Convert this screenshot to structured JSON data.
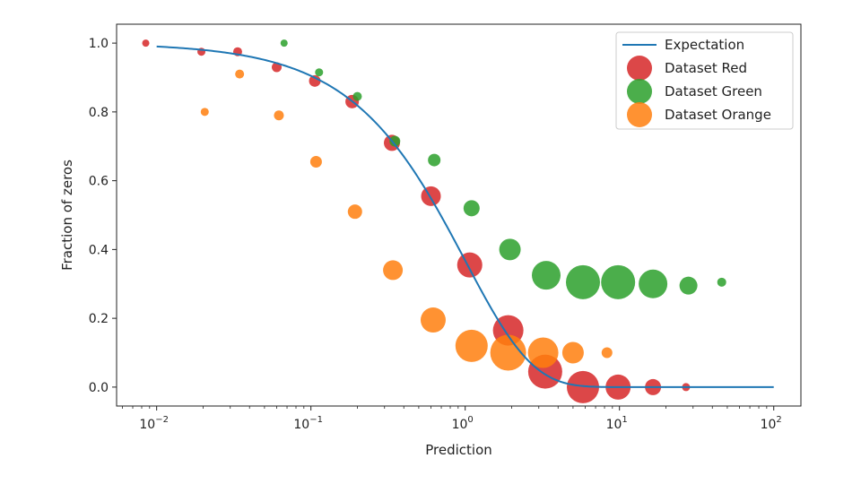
{
  "chart_data": {
    "type": "scatter",
    "title": "",
    "xlabel": "Prediction",
    "ylabel": "Fraction of zeros",
    "xscale": "log",
    "xlim": [
      0.0055,
      150
    ],
    "ylim": [
      -0.055,
      1.055
    ],
    "xticks": [
      {
        "value": 0.01,
        "base": "10",
        "exp": "−2"
      },
      {
        "value": 0.1,
        "base": "10",
        "exp": "−1"
      },
      {
        "value": 1,
        "base": "10",
        "exp": "0"
      },
      {
        "value": 10,
        "base": "10",
        "exp": "1"
      },
      {
        "value": 100,
        "base": "10",
        "exp": "2"
      }
    ],
    "yticks": [
      {
        "value": 0.0,
        "label": "0.0"
      },
      {
        "value": 0.2,
        "label": "0.2"
      },
      {
        "value": 0.4,
        "label": "0.4"
      },
      {
        "value": 0.6,
        "label": "0.6"
      },
      {
        "value": 0.8,
        "label": "0.8"
      },
      {
        "value": 1.0,
        "label": "1.0"
      }
    ],
    "legend_position": "top-right",
    "expectation": {
      "name": "Expectation",
      "color": "#1f77b4",
      "function": "exp(-x)",
      "x_range": [
        0.01,
        100
      ]
    },
    "series": [
      {
        "name": "Dataset Red",
        "color": "#d62728",
        "points": [
          {
            "x": 0.0085,
            "y": 1.0,
            "size": 4
          },
          {
            "x": 0.0195,
            "y": 0.975,
            "size": 4.5
          },
          {
            "x": 0.0335,
            "y": 0.975,
            "size": 5
          },
          {
            "x": 0.06,
            "y": 0.93,
            "size": 5.5
          },
          {
            "x": 0.106,
            "y": 0.89,
            "size": 6.5
          },
          {
            "x": 0.185,
            "y": 0.83,
            "size": 7.5
          },
          {
            "x": 0.335,
            "y": 0.71,
            "size": 9
          },
          {
            "x": 0.6,
            "y": 0.555,
            "size": 11
          },
          {
            "x": 1.07,
            "y": 0.355,
            "size": 14
          },
          {
            "x": 1.9,
            "y": 0.165,
            "size": 17
          },
          {
            "x": 3.3,
            "y": 0.045,
            "size": 19
          },
          {
            "x": 5.8,
            "y": 0.0,
            "size": 18
          },
          {
            "x": 9.8,
            "y": 0.0,
            "size": 14
          },
          {
            "x": 16.5,
            "y": 0.0,
            "size": 9
          },
          {
            "x": 27,
            "y": 0.0,
            "size": 4.5
          }
        ]
      },
      {
        "name": "Dataset Green",
        "color": "#2ca02c",
        "points": [
          {
            "x": 0.067,
            "y": 1.0,
            "size": 4
          },
          {
            "x": 0.113,
            "y": 0.915,
            "size": 4.5
          },
          {
            "x": 0.2,
            "y": 0.845,
            "size": 5
          },
          {
            "x": 0.35,
            "y": 0.715,
            "size": 6
          },
          {
            "x": 0.63,
            "y": 0.66,
            "size": 7
          },
          {
            "x": 1.1,
            "y": 0.52,
            "size": 9
          },
          {
            "x": 1.95,
            "y": 0.4,
            "size": 12
          },
          {
            "x": 3.35,
            "y": 0.325,
            "size": 16
          },
          {
            "x": 5.8,
            "y": 0.305,
            "size": 19
          },
          {
            "x": 9.8,
            "y": 0.305,
            "size": 19
          },
          {
            "x": 16.5,
            "y": 0.3,
            "size": 16
          },
          {
            "x": 28,
            "y": 0.295,
            "size": 10
          },
          {
            "x": 46,
            "y": 0.305,
            "size": 5
          }
        ]
      },
      {
        "name": "Dataset Orange",
        "color": "#ff7f0e",
        "points": [
          {
            "x": 0.0205,
            "y": 0.8,
            "size": 4.5
          },
          {
            "x": 0.0345,
            "y": 0.91,
            "size": 5
          },
          {
            "x": 0.062,
            "y": 0.79,
            "size": 5.5
          },
          {
            "x": 0.108,
            "y": 0.655,
            "size": 6.5
          },
          {
            "x": 0.193,
            "y": 0.51,
            "size": 8
          },
          {
            "x": 0.34,
            "y": 0.34,
            "size": 11
          },
          {
            "x": 0.62,
            "y": 0.195,
            "size": 14
          },
          {
            "x": 1.1,
            "y": 0.12,
            "size": 18
          },
          {
            "x": 1.9,
            "y": 0.1,
            "size": 20
          },
          {
            "x": 3.2,
            "y": 0.1,
            "size": 17
          },
          {
            "x": 5.0,
            "y": 0.1,
            "size": 12
          },
          {
            "x": 8.3,
            "y": 0.1,
            "size": 6
          }
        ]
      }
    ]
  }
}
